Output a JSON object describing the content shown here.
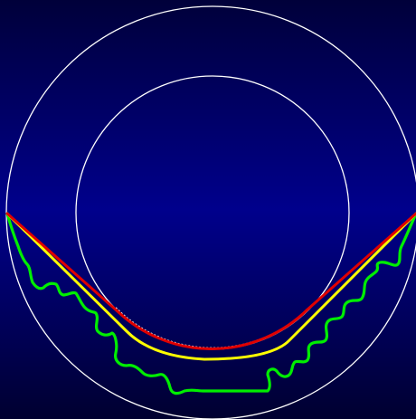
{
  "colors": {
    "background_top": "#00003a",
    "background_middle": "#00008c",
    "background_bottom": "#000030",
    "circle_stroke": "#ffffff",
    "red_path": "#e00000",
    "yellow_path": "#ffff00",
    "green_path": "#00ee00",
    "dotted_arc": "#ffffff"
  },
  "elements": {
    "outer_circle": "outer-circle",
    "inner_circle": "inner-circle",
    "red_line": "red-path",
    "yellow_line": "yellow-path",
    "green_line": "green-wavy-path",
    "dotted_line": "white-dotted-arc"
  }
}
